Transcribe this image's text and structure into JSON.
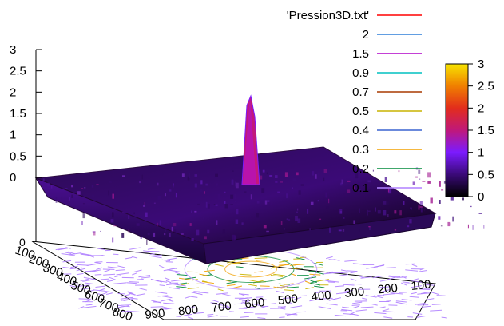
{
  "chart_data": {
    "type": "surface3d",
    "source_file_label": "'Pression3D.txt'",
    "z_axis": {
      "ticks": [
        "3",
        "2.5",
        "2",
        "1.5",
        "1",
        "0.5",
        "0"
      ],
      "range": [
        0,
        3
      ]
    },
    "x_axis": {
      "ticks": [
        "100",
        "200",
        "300",
        "400",
        "500",
        "600",
        "700",
        "800"
      ]
    },
    "y_axis": {
      "ticks": [
        "900",
        "800",
        "700",
        "600",
        "500",
        "400",
        "300",
        "200",
        "100"
      ]
    },
    "base_corner_label": "0",
    "colorbar": {
      "ticks": [
        "3",
        "2.5",
        "2",
        "1.5",
        "1",
        "0.5",
        "0"
      ],
      "range": [
        0,
        3
      ],
      "gradient": [
        "#000000",
        "#3a0a78",
        "#7b1bff",
        "#c0187a",
        "#e22d1c",
        "#f07f00",
        "#f7e400"
      ]
    },
    "legend": [
      {
        "label": "'Pression3D.txt'",
        "color": "#ff0000"
      },
      {
        "label": "2",
        "color": "#2f7fd8"
      },
      {
        "label": "1.5",
        "color": "#b000c8"
      },
      {
        "label": "0.9",
        "color": "#00c0c0"
      },
      {
        "label": "0.7",
        "color": "#a83a00"
      },
      {
        "label": "0.5",
        "color": "#c8b400"
      },
      {
        "label": "0.4",
        "color": "#3a64d0"
      },
      {
        "label": "0.3",
        "color": "#f2a000"
      },
      {
        "label": "0.2",
        "color": "#008a3a"
      },
      {
        "label": "0.1",
        "color": "#b080ff"
      }
    ],
    "peak_value": 2.2,
    "peak_location_label": "center"
  }
}
